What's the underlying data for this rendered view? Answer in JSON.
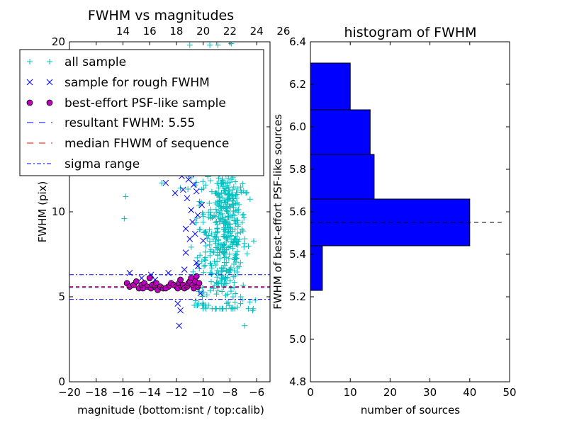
{
  "chart_data": [
    {
      "type": "scatter",
      "title": "FWHM vs magnitudes",
      "xlabel": "magnitude (bottom:isnt / top:calib)",
      "ylabel": "FWHM (pix)",
      "xlim": [
        -20,
        -5
      ],
      "ylim": [
        0,
        20
      ],
      "x_ticks": [
        -20,
        -18,
        -16,
        -14,
        -12,
        -10,
        -8,
        -6
      ],
      "x_tick_labels": [
        "−20",
        "−18",
        "−16",
        "−14",
        "−12",
        "−10",
        "−8",
        "−6"
      ],
      "y_ticks": [
        0,
        5,
        10,
        15,
        20
      ],
      "y_tick_labels": [
        "0",
        "5",
        "10",
        "15",
        "20"
      ],
      "top_axis": {
        "ticks": [
          14,
          16,
          18,
          20,
          22,
          24,
          26
        ],
        "tick_labels": [
          "14",
          "16",
          "18",
          "20",
          "22",
          "24",
          "26"
        ],
        "offset": 30
      },
      "legend_position": "upper-left",
      "grid": false,
      "series": [
        {
          "name": "all sample",
          "marker": "plus",
          "color": "#00bfbf",
          "clusters": [
            {
              "x_center": -8.3,
              "x_spread": 0.75,
              "y_center": 9.0,
              "y_spread": 2.6,
              "y_min": 4.3,
              "y_max": 20,
              "count": 460
            },
            {
              "x_center": -10.0,
              "x_spread": 0.4,
              "y_center": 8.5,
              "y_spread": 2.8,
              "y_min": 4.5,
              "y_max": 20,
              "count": 60
            }
          ],
          "points": [
            {
              "x": -15.9,
              "y": 9.6
            },
            {
              "x": -15.8,
              "y": 10.9
            },
            {
              "x": -13.1,
              "y": 11.7
            },
            {
              "x": -11.7,
              "y": 11.4
            },
            {
              "x": -11.1,
              "y": 5.7
            },
            {
              "x": -10.8,
              "y": 6.1
            },
            {
              "x": -11.0,
              "y": 19.8
            },
            {
              "x": -9.5,
              "y": 19.8
            },
            {
              "x": -8.9,
              "y": 19.8
            },
            {
              "x": -7.9,
              "y": 19.9
            },
            {
              "x": -7.4,
              "y": 19.3
            },
            {
              "x": -6.8,
              "y": 11.1
            },
            {
              "x": -6.1,
              "y": 4.8
            },
            {
              "x": -6.5,
              "y": 4.7
            },
            {
              "x": -6.9,
              "y": 3.3
            },
            {
              "x": -9.8,
              "y": 4.4
            },
            {
              "x": -9.0,
              "y": 20.0
            },
            {
              "x": -8.5,
              "y": 17.8
            },
            {
              "x": -7.2,
              "y": 4.6
            },
            {
              "x": -6.3,
              "y": 4.2
            }
          ]
        },
        {
          "name": "sample for rough FWHM",
          "marker": "x",
          "color": "#0000ff",
          "points": [
            {
              "x": -15.5,
              "y": 6.4
            },
            {
              "x": -14.6,
              "y": 6.1
            },
            {
              "x": -13.9,
              "y": 6.3
            },
            {
              "x": -13.6,
              "y": 6.0
            },
            {
              "x": -12.8,
              "y": 11.7
            },
            {
              "x": -12.6,
              "y": 6.4
            },
            {
              "x": -12.1,
              "y": 11.1
            },
            {
              "x": -12.0,
              "y": 12.5
            },
            {
              "x": -11.9,
              "y": 4.6
            },
            {
              "x": -11.8,
              "y": 3.3
            },
            {
              "x": -11.7,
              "y": 4.2
            },
            {
              "x": -11.6,
              "y": 12.1
            },
            {
              "x": -11.5,
              "y": 11.3
            },
            {
              "x": -11.4,
              "y": 6.6
            },
            {
              "x": -11.3,
              "y": 9.0
            },
            {
              "x": -11.2,
              "y": 10.8
            },
            {
              "x": -11.1,
              "y": 11.9
            },
            {
              "x": -11.0,
              "y": 8.4
            },
            {
              "x": -10.9,
              "y": 12.2
            },
            {
              "x": -10.8,
              "y": 9.4
            },
            {
              "x": -10.7,
              "y": 11.6
            },
            {
              "x": -10.6,
              "y": 8.7
            },
            {
              "x": -10.5,
              "y": 7.0
            },
            {
              "x": -10.4,
              "y": 9.8
            },
            {
              "x": -10.3,
              "y": 12.8
            },
            {
              "x": -10.2,
              "y": 5.2
            },
            {
              "x": -10.1,
              "y": 10.4
            },
            {
              "x": -10.0,
              "y": 8.3
            },
            {
              "x": -10.4,
              "y": 6.8
            },
            {
              "x": -10.7,
              "y": 6.0
            },
            {
              "x": -11.6,
              "y": 12.8
            },
            {
              "x": -10.9,
              "y": 10.1
            },
            {
              "x": -11.3,
              "y": 7.6
            },
            {
              "x": -10.5,
              "y": 11.2
            }
          ]
        },
        {
          "name": "best-effort PSF-like sample",
          "marker": "circle",
          "color": "#bf00bf",
          "points": [
            {
              "x": -15.7,
              "y": 5.8
            },
            {
              "x": -15.5,
              "y": 5.6
            },
            {
              "x": -15.2,
              "y": 5.7
            },
            {
              "x": -15.0,
              "y": 5.9
            },
            {
              "x": -14.8,
              "y": 5.5
            },
            {
              "x": -14.6,
              "y": 5.7
            },
            {
              "x": -14.4,
              "y": 5.8
            },
            {
              "x": -14.2,
              "y": 5.6
            },
            {
              "x": -14.0,
              "y": 6.1
            },
            {
              "x": -13.9,
              "y": 5.5
            },
            {
              "x": -13.8,
              "y": 5.7
            },
            {
              "x": -13.6,
              "y": 5.6
            },
            {
              "x": -13.5,
              "y": 5.8
            },
            {
              "x": -13.4,
              "y": 5.4
            },
            {
              "x": -13.2,
              "y": 5.6
            },
            {
              "x": -13.0,
              "y": 5.5
            },
            {
              "x": -12.6,
              "y": 5.6
            },
            {
              "x": -12.4,
              "y": 5.8
            },
            {
              "x": -12.2,
              "y": 5.7
            },
            {
              "x": -12.0,
              "y": 5.6
            },
            {
              "x": -11.9,
              "y": 5.5
            },
            {
              "x": -11.8,
              "y": 5.8
            },
            {
              "x": -11.6,
              "y": 5.6
            },
            {
              "x": -11.5,
              "y": 5.7
            },
            {
              "x": -11.4,
              "y": 5.5
            },
            {
              "x": -11.2,
              "y": 5.6
            },
            {
              "x": -11.1,
              "y": 5.8
            },
            {
              "x": -11.0,
              "y": 5.9
            },
            {
              "x": -10.9,
              "y": 6.1
            },
            {
              "x": -10.8,
              "y": 5.7
            },
            {
              "x": -10.7,
              "y": 5.5
            },
            {
              "x": -10.6,
              "y": 5.9
            },
            {
              "x": -10.5,
              "y": 6.2
            },
            {
              "x": -10.4,
              "y": 5.6
            },
            {
              "x": -10.3,
              "y": 5.8
            },
            {
              "x": -12.8,
              "y": 5.5
            },
            {
              "x": -14.5,
              "y": 5.5
            },
            {
              "x": -11.7,
              "y": 6.0
            }
          ]
        },
        {
          "name": "resultant FWHM: 5.55",
          "type": "hline",
          "y": 5.55,
          "color": "#0000ff",
          "linestyle": "dashed"
        },
        {
          "name": "median FHWM of sequence",
          "type": "hline",
          "y": 5.6,
          "color": "#ff0000",
          "linestyle": "dashed"
        },
        {
          "name": "sigma range",
          "type": "hline",
          "y_values": [
            4.85,
            6.3
          ],
          "color": "#0000ff",
          "linestyle": "dashdot"
        }
      ]
    },
    {
      "type": "bar",
      "orientation": "horizontal",
      "title": "histogram of FWHM",
      "xlabel": "number of sources",
      "ylabel": "FWHM of best-effort PSF-like sources",
      "xlim": [
        0,
        50
      ],
      "ylim": [
        4.8,
        6.4
      ],
      "x_ticks": [
        0,
        10,
        20,
        30,
        40,
        50
      ],
      "x_tick_labels": [
        "0",
        "10",
        "20",
        "30",
        "40",
        "50"
      ],
      "y_ticks": [
        4.8,
        5.0,
        5.2,
        5.4,
        5.6,
        5.8,
        6.0,
        6.2,
        6.4
      ],
      "y_tick_labels": [
        "4.8",
        "5.0",
        "5.2",
        "5.4",
        "5.6",
        "5.8",
        "6.0",
        "6.2",
        "6.4"
      ],
      "bar_color": "#0000ff",
      "bins": [
        {
          "y_low": 5.23,
          "y_high": 5.44,
          "count": 3
        },
        {
          "y_low": 5.44,
          "y_high": 5.66,
          "count": 40
        },
        {
          "y_low": 5.66,
          "y_high": 5.87,
          "count": 16
        },
        {
          "y_low": 5.87,
          "y_high": 6.08,
          "count": 15
        },
        {
          "y_low": 6.08,
          "y_high": 6.3,
          "count": 10
        }
      ],
      "reference_line": {
        "y": 5.55,
        "x_range": [
          0,
          48
        ],
        "color": "#000000",
        "linestyle": "dashed"
      }
    }
  ]
}
